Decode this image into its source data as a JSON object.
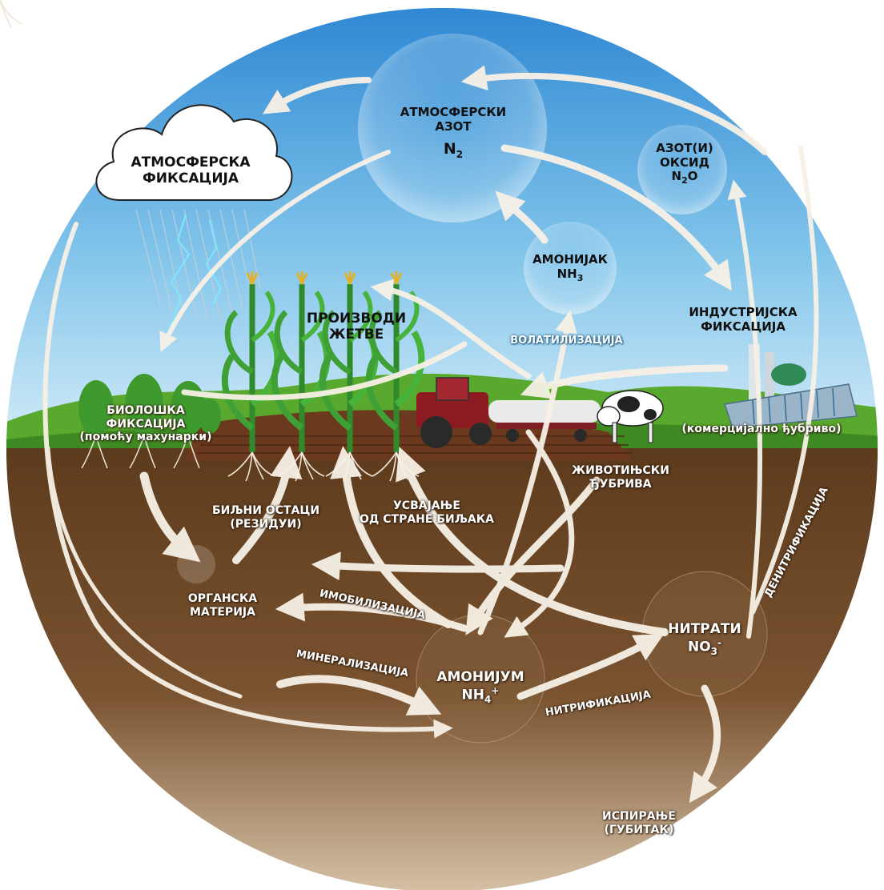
{
  "colors": {
    "sky_top": "#2f8fd8",
    "sky_bottom": "#cfe9f6",
    "grass": "#4fa02a",
    "soil": "#6e4a26",
    "soil_light": "#d8c2a5",
    "arrow": "#f7f1e6"
  },
  "nodes": {
    "atmospheric_nitrogen": {
      "line1": "АТМОСФЕРСКИ",
      "line2": "АЗОТ",
      "formula": "N",
      "sub": "2"
    },
    "atmospheric_fixation": {
      "line1": "АТМОСФЕРСКА",
      "line2": "ФИКСАЦИЈА"
    },
    "nitrous_oxide": {
      "line1": "АЗОТ(И)",
      "line2": "ОКСИД",
      "formula_pre": "N",
      "sub": "2",
      "formula_post": "O"
    },
    "ammonia": {
      "line1": "АМОНИЈАК",
      "formula": "NH",
      "sub": "3"
    },
    "industrial_fixation": {
      "line1": "ИНДУСТРИЈСКА",
      "line2": "ФИКСАЦИЈА"
    },
    "commercial_fertilizer": {
      "text": "(комерцијално ђубриво)"
    },
    "crop_products": {
      "line1": "ПРОИЗВОДИ",
      "line2": "ЖЕТВЕ"
    },
    "volatilization": {
      "text": "ВОЛАТИЛИЗАЦИЈА"
    },
    "biological_fixation": {
      "line1": "БИОЛОШКА",
      "line2": "ФИКСАЦИЈА",
      "line3": "(помоћу махунарки)"
    },
    "animal_manure": {
      "line1": "ЖИВОТИЊСКИ",
      "line2": "ЂУБРИВА"
    },
    "plant_residues": {
      "line1": "БИЉНИ ОСТАЦИ",
      "line2": "(РЕЗИДУИ)"
    },
    "plant_uptake": {
      "line1": "УСВАЈАЊЕ",
      "line2": "ОД СТРАНЕ БИЉАКА"
    },
    "organic_matter": {
      "line1": "ОРГАНСКА",
      "line2": "МАТЕРИЈА"
    },
    "immobilization": {
      "text": "ИМОБИЛИЗАЦИЈА"
    },
    "mineralization": {
      "text": "МИНЕРАЛИЗАЦИЈА"
    },
    "ammonium": {
      "line1": "АМОНИЈУМ",
      "formula": "NH",
      "sub": "4",
      "sup": "+"
    },
    "nitrates": {
      "line1": "НИТРАТИ",
      "formula": "NO",
      "sub": "3",
      "sup": "-"
    },
    "nitrification": {
      "text": "НИТРИФИКАЦИЈА"
    },
    "denitrification": {
      "text": "ДЕНИТРИФИКАЦИЈА"
    },
    "leaching": {
      "line1": "ИСПИРАЊЕ",
      "line2": "(ГУБИТАК)"
    }
  }
}
